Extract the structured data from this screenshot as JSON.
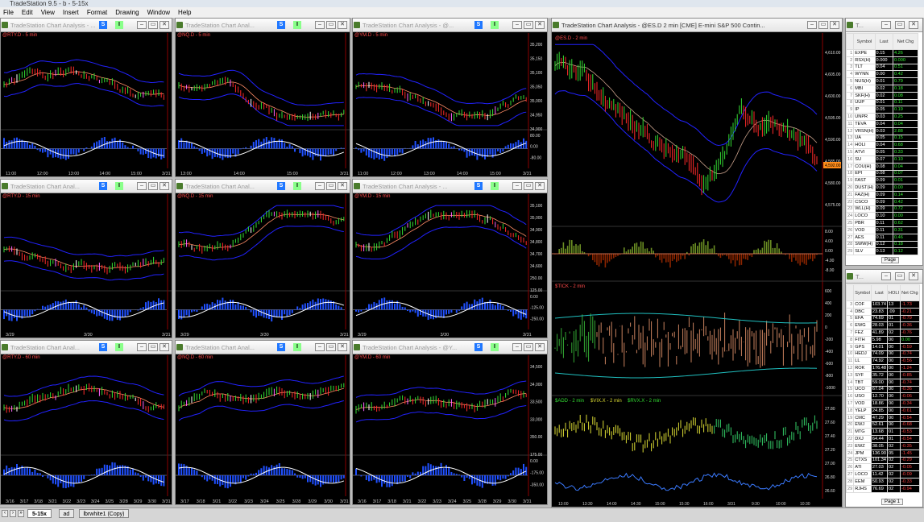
{
  "app": {
    "title": "TradeStation 9.5 - b - 5-15x"
  },
  "menu": [
    "File",
    "Edit",
    "View",
    "Insert",
    "Format",
    "Drawing",
    "Window",
    "Help"
  ],
  "colors": {
    "chart_bg": "#000000",
    "up_bar": "#33dd33",
    "down_bar": "#ff2a2a",
    "envelope": "#2222ff",
    "midline": "#ff8c66",
    "oscillator": "#2050ff",
    "signal": "#ffffff"
  },
  "charts": [
    {
      "title": "TradeStation Chart Analysis - ...",
      "symbol": "@RTY.D - 5 min",
      "s": "S",
      "i": "I",
      "xlabels": [
        "11:00",
        "12:00",
        "13:00",
        "14:00",
        "15:00",
        "3/31"
      ],
      "ylabels": [],
      "seed": 1,
      "trend": -1
    },
    {
      "title": "TradeStation Chart Anal...",
      "symbol": "@NQ.D - 5 min",
      "s": "S",
      "i": "I",
      "xlabels": [
        "13:00",
        "14:00",
        "15:00",
        "3/31 10:00"
      ],
      "ylabels": [],
      "seed": 2,
      "trend": -1
    },
    {
      "title": "TradeStation Chart Analysis - @...",
      "symbol": "@YM.D - 5 min",
      "s": "S",
      "i": "I",
      "xlabels": [
        "11:00",
        "12:00",
        "13:00",
        "14:00",
        "15:00",
        "3/31"
      ],
      "ylabels": [
        "35,200",
        "35,150",
        "35,100",
        "35,050",
        "35,000",
        "34,950",
        "34,900",
        "80.00",
        "0.00",
        "-80.00"
      ],
      "seed": 3,
      "trend": -1
    },
    {
      "title": "TradeStation Chart Anal...",
      "symbol": "@RTY.D - 15 min",
      "s": "S",
      "i": "I",
      "xlabels": [
        "3/29",
        "3/30",
        "3/31"
      ],
      "ylabels": [],
      "seed": 4,
      "trend": 0
    },
    {
      "title": "TradeStation Chart Anal...",
      "symbol": "@NQ.D - 15 min",
      "s": "S",
      "i": "I",
      "xlabels": [
        "3/29",
        "3/30",
        "3/31"
      ],
      "ylabels": [],
      "seed": 5,
      "trend": 1
    },
    {
      "title": "TradeStation Chart Analysis - ...",
      "symbol": "@YM.D - 15 min",
      "s": "S",
      "i": "I",
      "xlabels": [
        "3/29",
        "3/30",
        "3/31"
      ],
      "ylabels": [
        "35,100",
        "35,000",
        "34,900",
        "34,800",
        "34,700",
        "34,600",
        "250.00",
        "125.00",
        "0.00",
        "-125.00",
        "-250.00"
      ],
      "seed": 6,
      "trend": 1
    },
    {
      "title": "TradeStation Chart Anal...",
      "symbol": "@RTY.D - 60 min",
      "s": "S",
      "i": "I",
      "xlabels": [
        "3/16",
        "3/17",
        "3/18",
        "3/21",
        "3/22",
        "3/23",
        "3/24",
        "3/25",
        "3/28",
        "3/29",
        "3/30",
        "3/31"
      ],
      "ylabels": [],
      "seed": 7,
      "trend": 1
    },
    {
      "title": "TradeStation Chart Anal...",
      "symbol": "@NQ.D - 60 min",
      "s": "S",
      "i": "I",
      "xlabels": [
        "3/17",
        "3/18",
        "3/21",
        "3/22",
        "3/23",
        "3/24",
        "3/25",
        "3/28",
        "3/29",
        "3/30",
        "3/31"
      ],
      "ylabels": [],
      "seed": 8,
      "trend": 1
    },
    {
      "title": "TradeStation Chart Analysis - @Y...",
      "symbol": "@YM.D - 60 min",
      "s": "S",
      "i": "I",
      "xlabels": [
        "3/16",
        "3/17",
        "3/18",
        "3/21",
        "3/22",
        "3/23",
        "3/24",
        "3/25",
        "3/28",
        "3/29",
        "3/30",
        "3/31"
      ],
      "ylabels": [
        "34,500",
        "34,000",
        "33,500",
        "33,000",
        "350.00",
        "175.00",
        "0.00",
        "-175.00",
        "-350.00"
      ],
      "seed": 9,
      "trend": 1
    }
  ],
  "main_chart": {
    "title": "TradeStation Chart Analysis - @ES.D 2 min [CME] E-mini S&P 500 Contin...",
    "symbol": "@ES.D - 2 min",
    "tick_label": "$TICK - 2 min",
    "add_label": "$ADD - 2 min",
    "vix_label": "$VIX.X - 2 min",
    "rvx_label": "$RVX.X - 2 min",
    "price_axis": [
      "4,610.00",
      "4,605.00",
      "4,600.00",
      "4,595.00",
      "4,590.00",
      "4,585.00",
      "4,580.00",
      "4,575.00"
    ],
    "osc_axis": [
      "8.00",
      "4.00",
      "0.00",
      "-4.00",
      "-8.00"
    ],
    "tick_axis": [
      "600",
      "400",
      "200",
      "0",
      "-200",
      "-400",
      "-600",
      "-800",
      "-1000"
    ],
    "vix_axis": [
      "27.80",
      "27.60",
      "27.40",
      "27.20",
      "27.00",
      "26.80",
      "26.60"
    ],
    "xlabels": [
      "13:00",
      "13:30",
      "14:00",
      "14:30",
      "15:00",
      "15:30",
      "16:00",
      "3/31",
      "9:30",
      "10:00",
      "10:30"
    ],
    "last_price": "4,592.00"
  },
  "watch1": {
    "headers": [
      "Symbol",
      "Last",
      "Net Chg"
    ],
    "rows": [
      [
        "1",
        "EXPE",
        "0.15",
        "4.26"
      ],
      [
        "2",
        "RSX(H)",
        "0.000",
        "0.000"
      ],
      [
        "3",
        "TLT",
        "0.04",
        "0.51"
      ],
      [
        "4",
        "WYNN",
        "0.00",
        "0.42"
      ],
      [
        "5",
        "NUS(H)",
        "0.01",
        "0.79"
      ],
      [
        "6",
        "MBI",
        "0.02",
        "0.18"
      ],
      [
        "7",
        "SKF(H)",
        "0.02",
        "0.08"
      ],
      [
        "8",
        "UUP",
        "0.01",
        "0.11"
      ],
      [
        "9",
        "IP",
        "0.05",
        "0.19"
      ],
      [
        "10",
        "UNPR",
        "0.03",
        "0.25"
      ],
      [
        "11",
        "TEVA",
        "0.04",
        "0.04"
      ],
      [
        "12",
        "VRSN(H)",
        "0.03",
        "2.88"
      ],
      [
        "13",
        "UA",
        "0.05",
        "0.15"
      ],
      [
        "14",
        "HOLI",
        "0.04",
        "0.68"
      ],
      [
        "15",
        "ATVI",
        "0.05",
        "0.33"
      ],
      [
        "16",
        "SU",
        "0.07",
        "0.10"
      ],
      [
        "17",
        "COU(H)",
        "0.08",
        "0.04"
      ],
      [
        "18",
        "EPI",
        "0.08",
        "0.07"
      ],
      [
        "19",
        "FAST",
        "0.09",
        "0.01"
      ],
      [
        "20",
        "DUST(H)",
        "0.09",
        "0.00"
      ],
      [
        "21",
        "FAZ(H)",
        "0.09",
        "0.14"
      ],
      [
        "22",
        "CSCO",
        "0.09",
        "0.42"
      ],
      [
        "23",
        "WLL(H)",
        "0.09",
        "0.72"
      ],
      [
        "24",
        "LOCO",
        "0.10",
        "0.00"
      ],
      [
        "25",
        "PBR",
        "0.11",
        "0.62"
      ],
      [
        "26",
        "VOD",
        "0.11",
        "0.31"
      ],
      [
        "27",
        "AES",
        "0.11",
        "0.46"
      ],
      [
        "28",
        "SWW(H)",
        "0.12",
        "0.18"
      ],
      [
        "29",
        "SLV",
        "0.13",
        "0.12"
      ]
    ],
    "page": "Page"
  },
  "watch2": {
    "headers": [
      "Symbol",
      "Last",
      "HOLI",
      "Net Chg"
    ],
    "rows": [
      [
        "3",
        "COF",
        "103.74",
        "13",
        "-1.73"
      ],
      [
        "4",
        "DBC",
        "23.83",
        ".09",
        "-0.21"
      ],
      [
        "5",
        "EFA",
        "74.69",
        "01",
        "-0.79"
      ],
      [
        "6",
        "EWG",
        "28.03",
        "01",
        "-0.36"
      ],
      [
        "7",
        "FEZ",
        "41.89",
        "02",
        "-0.76"
      ],
      [
        "8",
        "FITH",
        "5.98",
        "00",
        "0.00"
      ],
      [
        "9",
        "GPS",
        "14.01",
        "00",
        "-0.59"
      ],
      [
        "10",
        "HEDJ",
        "74.09",
        "00",
        "-0.74"
      ],
      [
        "11",
        "LL",
        "74.92",
        "00",
        "-0.56"
      ],
      [
        "12",
        "ROK",
        "176.48",
        "00",
        "-1.24"
      ],
      [
        "13",
        "SYF",
        "35.72",
        "00",
        "-0.85"
      ],
      [
        "14",
        "TBT",
        "59.00",
        "00",
        "-0.74"
      ],
      [
        "15",
        "UCO",
        "67.04",
        "00",
        "-0.36"
      ],
      [
        "16",
        "USO",
        "12.70",
        "00",
        "-0.06"
      ],
      [
        "17",
        "VOD",
        "18.86",
        "00",
        "-0.34"
      ],
      [
        "18",
        "YELP",
        "24.85",
        "00",
        "-0.61"
      ],
      [
        "19",
        "CMC",
        "47.29",
        "00",
        "-0.54"
      ],
      [
        "20",
        "EWJ",
        "52.61",
        "00",
        "-0.68"
      ],
      [
        "21",
        "MTG",
        "13.68",
        "01",
        "-0.53"
      ],
      [
        "22",
        "DXJ",
        "64.44",
        "01",
        "-0.54"
      ],
      [
        "23",
        "EWZ",
        "38.05",
        "02",
        "-0.35"
      ],
      [
        "24",
        "JPM",
        "136.90",
        "05",
        "-1.45"
      ],
      [
        "25",
        "CTXS",
        "101.34",
        "02",
        "-0.29"
      ],
      [
        "26",
        "ATI",
        "27.03",
        "02",
        "-0.05"
      ],
      [
        "27",
        "LOCO",
        "11.42",
        "02",
        "-0.09"
      ],
      [
        "28",
        "EEM",
        "50.93",
        "02",
        "-0.33"
      ],
      [
        "29",
        "RJHS",
        "76.69",
        "02",
        "-0.94"
      ]
    ],
    "page": "Page 1"
  },
  "tabs": [
    "5-15x",
    "ad",
    "lbrwhite1 (Copy)"
  ]
}
